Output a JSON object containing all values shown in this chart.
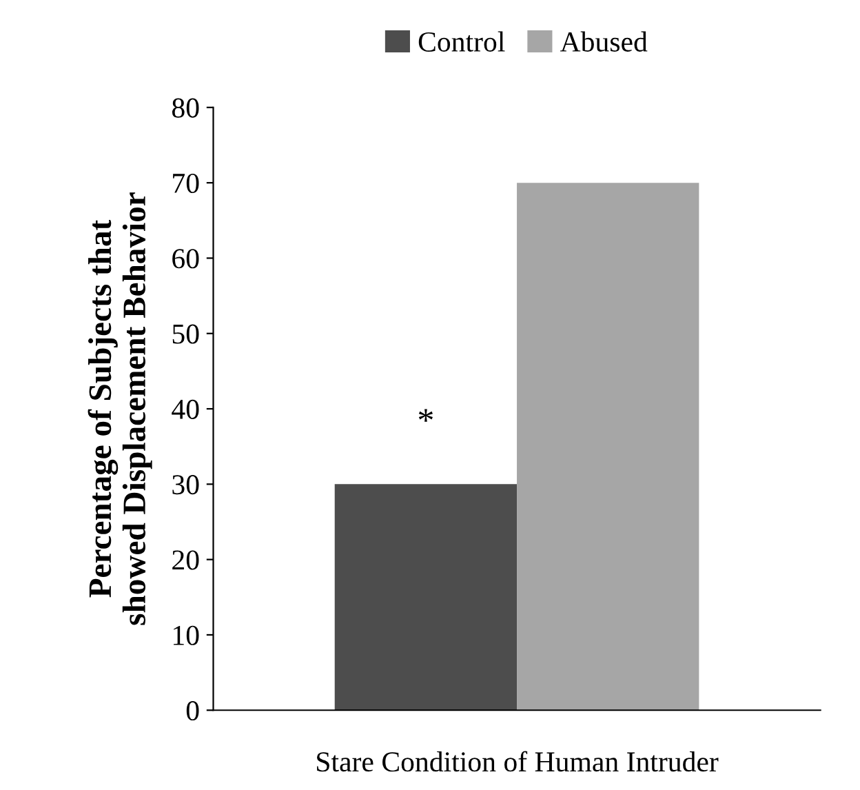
{
  "chart_data": {
    "type": "bar",
    "xlabel": "Stare Condition of Human Intruder",
    "ylabel": "Percentage of Subjects that\nshowed Displacement Behavior",
    "categories": [
      null
    ],
    "series": [
      {
        "name": "Control",
        "color": "#4d4d4d",
        "values": [
          30
        ]
      },
      {
        "name": "Abused",
        "color": "#a6a6a6",
        "values": [
          70
        ]
      }
    ],
    "ylim": [
      0,
      80
    ],
    "yticks": [
      0,
      10,
      20,
      30,
      40,
      50,
      60,
      70,
      80
    ],
    "annotations": [
      "*"
    ],
    "legend": "top",
    "grid": false
  }
}
